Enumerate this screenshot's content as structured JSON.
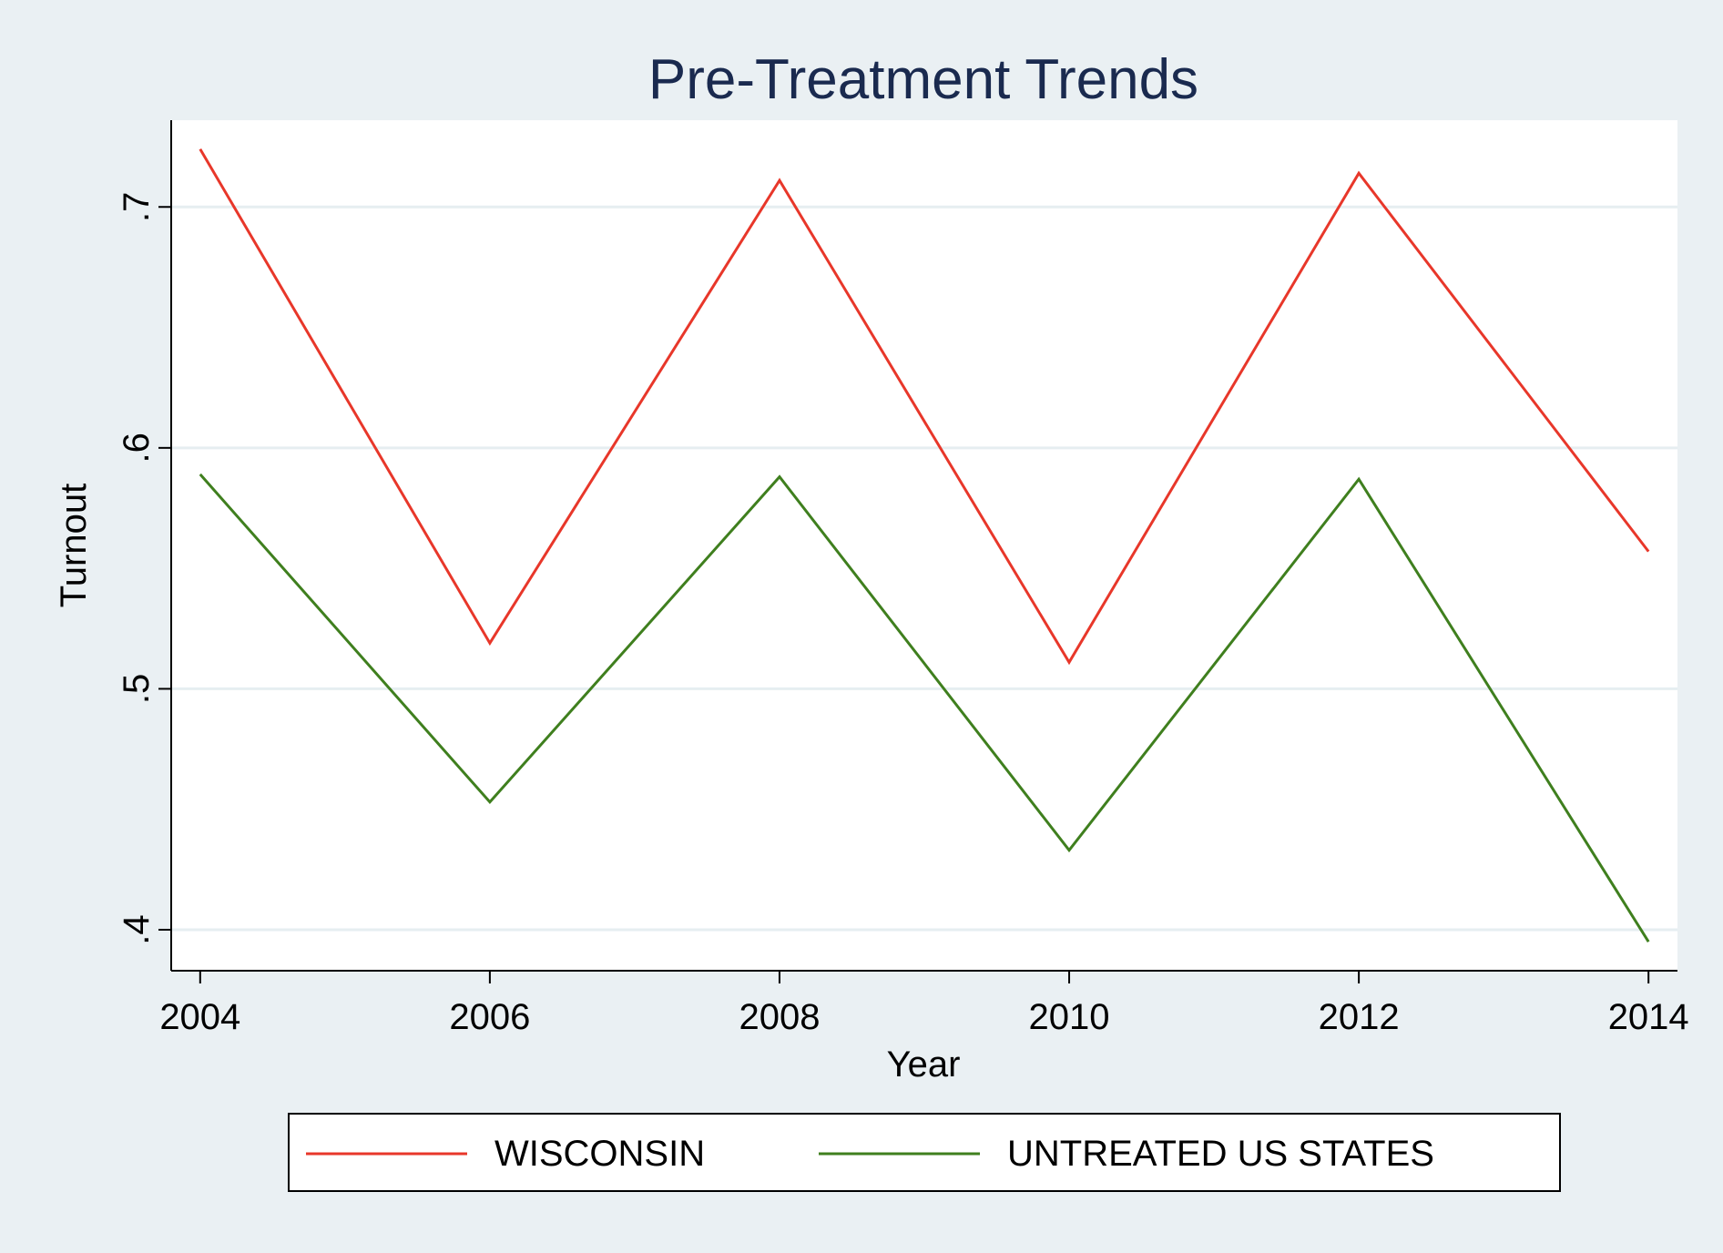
{
  "chart_data": {
    "type": "line",
    "title": "Pre-Treatment Trends",
    "xlabel": "Year",
    "ylabel": "Turnout",
    "x": [
      2004,
      2006,
      2008,
      2010,
      2012,
      2014
    ],
    "xticks": [
      2004,
      2006,
      2008,
      2010,
      2012,
      2014
    ],
    "xtick_labels": [
      "2004",
      "2006",
      "2008",
      "2010",
      "2012",
      "2014"
    ],
    "yticks": [
      0.4,
      0.5,
      0.6,
      0.7
    ],
    "ytick_labels": [
      ".4",
      ".5",
      ".6",
      ".7"
    ],
    "xlim": [
      2003.8,
      2014.2
    ],
    "ylim": [
      0.383,
      0.736
    ],
    "grid": true,
    "legend_position": "bottom",
    "series": [
      {
        "name": "WISCONSIN",
        "color": "#e8372a",
        "values": [
          0.724,
          0.519,
          0.711,
          0.511,
          0.714,
          0.557
        ]
      },
      {
        "name": "UNTREATED US STATES",
        "color": "#3f7f1e",
        "values": [
          0.589,
          0.453,
          0.588,
          0.433,
          0.587,
          0.395
        ]
      }
    ]
  }
}
